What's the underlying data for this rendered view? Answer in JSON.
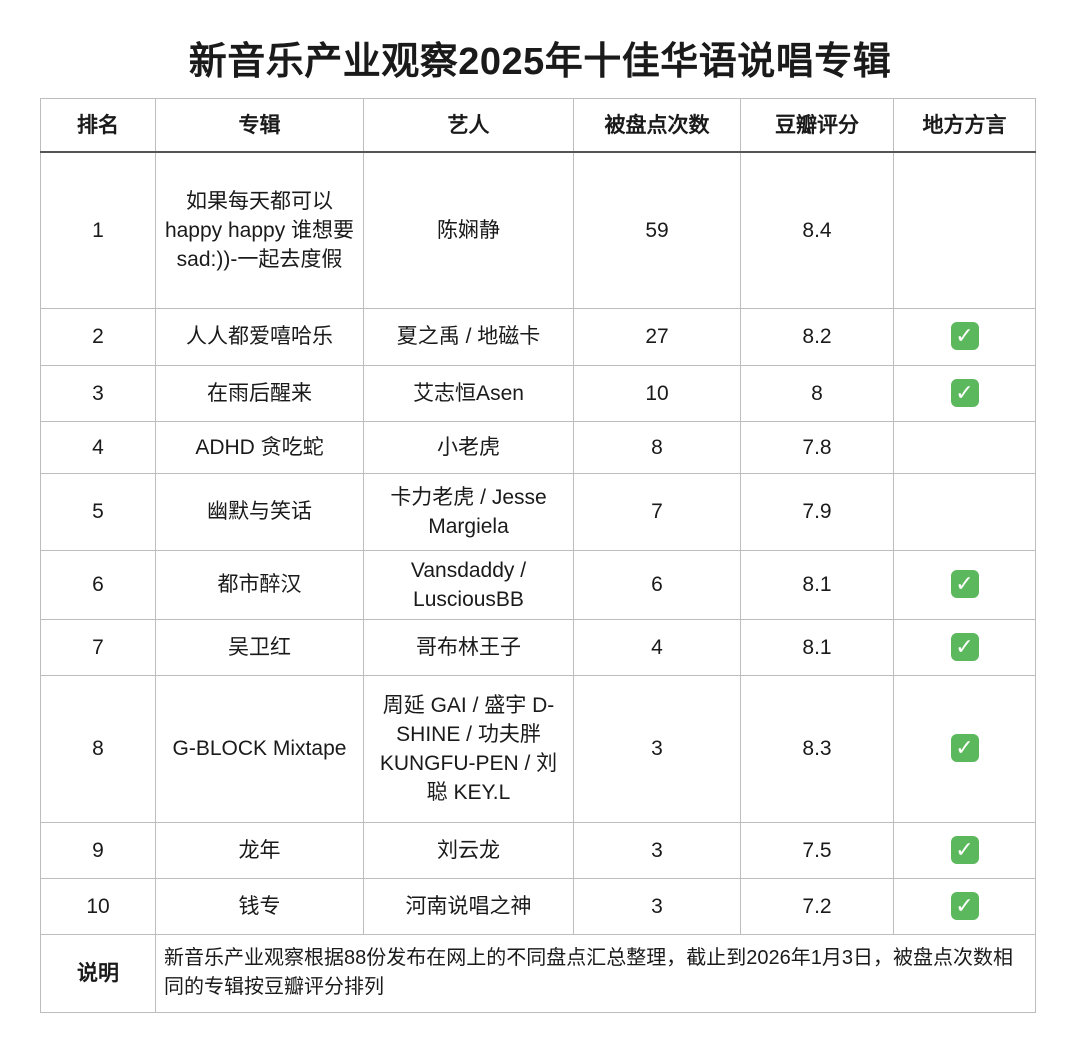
{
  "title": "新音乐产业观察2025年十佳华语说唱专辑",
  "headers": [
    "排名",
    "专辑",
    "艺人",
    "被盘点次数",
    "豆瓣评分",
    "地方方言"
  ],
  "rows": [
    {
      "rank": "1",
      "album": "如果每天都可以happy happy 谁想要sad:))-一起去度假",
      "artist": "陈娴静",
      "count": "59",
      "score": "8.4",
      "dialect": false
    },
    {
      "rank": "2",
      "album": "人人都爱嘻哈乐",
      "artist": "夏之禹 / 地磁卡",
      "count": "27",
      "score": "8.2",
      "dialect": true
    },
    {
      "rank": "3",
      "album": "在雨后醒来",
      "artist": "艾志恒Asen",
      "count": "10",
      "score": "8",
      "dialect": true
    },
    {
      "rank": "4",
      "album": "ADHD 贪吃蛇",
      "artist": "小老虎",
      "count": "8",
      "score": "7.8",
      "dialect": false
    },
    {
      "rank": "5",
      "album": "幽默与笑话",
      "artist": "卡力老虎 / Jesse Margiela",
      "count": "7",
      "score": "7.9",
      "dialect": false
    },
    {
      "rank": "6",
      "album": "都市醉汉",
      "artist": "Vansdaddy / LusciousBB",
      "count": "6",
      "score": "8.1",
      "dialect": true
    },
    {
      "rank": "7",
      "album": "吴卫红",
      "artist": "哥布林王子",
      "count": "4",
      "score": "8.1",
      "dialect": true
    },
    {
      "rank": "8",
      "album": "G-BLOCK Mixtape",
      "artist": "周延 GAI / 盛宇 D-SHINE / 功夫胖 KUNGFU-PEN / 刘聪 KEY.L",
      "count": "3",
      "score": "8.3",
      "dialect": true
    },
    {
      "rank": "9",
      "album": "龙年",
      "artist": "刘云龙",
      "count": "3",
      "score": "7.5",
      "dialect": true
    },
    {
      "rank": "10",
      "album": "钱专",
      "artist": "河南说唱之神",
      "count": "3",
      "score": "7.2",
      "dialect": true
    }
  ],
  "note_label": "说明",
  "note": "新音乐产业观察根据88份发布在网上的不同盘点汇总整理，截止到2026年1月3日，被盘点次数相同的专辑按豆瓣评分排列",
  "check_icon": "white-check-mark-green-square",
  "check_glyph": "✓",
  "colors": {
    "check": "#5cb85c"
  }
}
